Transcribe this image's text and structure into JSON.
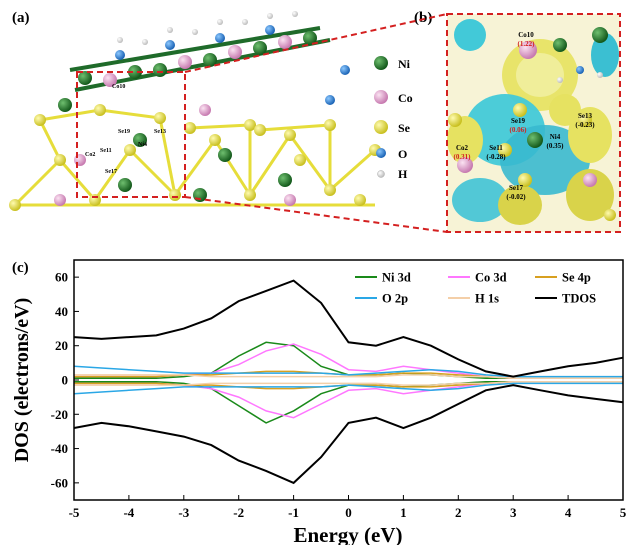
{
  "panels": {
    "a": "(a)",
    "b": "(b)",
    "c": "(c)"
  },
  "structure_legend": [
    {
      "label": "Ni",
      "color": "#1f6b2a"
    },
    {
      "label": "Co",
      "color": "#e3a6cc"
    },
    {
      "label": "Se",
      "color": "#e8e23a"
    },
    {
      "label": "O",
      "color": "#2b7fd1"
    },
    {
      "label": "H",
      "color": "#eeeeee"
    }
  ],
  "atom_labels_a": [
    "Co10",
    "Se19",
    "Se13",
    "Ni4",
    "Se11",
    "Co2",
    "Se17"
  ],
  "atom_labels_b": [
    {
      "name": "Co10",
      "charge": "(1.22)",
      "charge_color": "#d42020"
    },
    {
      "name": "Se19",
      "charge": "(0.06)",
      "charge_color": "#d42020"
    },
    {
      "name": "Se13",
      "charge": "(-0.23)",
      "charge_color": "#000000"
    },
    {
      "name": "Ni4",
      "charge": "(0.35)",
      "charge_color": "#000000"
    },
    {
      "name": "Co2",
      "charge": "(0.31)",
      "charge_color": "#d42020"
    },
    {
      "name": "Se11",
      "charge": "(-0.28)",
      "charge_color": "#000000"
    },
    {
      "name": "Se17",
      "charge": "(-0.02)",
      "charge_color": "#000000"
    }
  ],
  "chart_data": {
    "type": "line",
    "xlabel": "Energy (eV)",
    "ylabel": "DOS (electrons/eV)",
    "xlim": [
      -5,
      5
    ],
    "ylim": [
      -70,
      70
    ],
    "xticks": [
      -5,
      -4,
      -3,
      -2,
      -1,
      0,
      1,
      2,
      3,
      4,
      5
    ],
    "yticks": [
      60,
      40,
      20,
      0,
      -20,
      -40,
      -60
    ],
    "legend_position": "top-right",
    "x": [
      -5,
      -4.5,
      -4,
      -3.5,
      -3,
      -2.5,
      -2,
      -1.5,
      -1,
      -0.5,
      0,
      0.5,
      1,
      1.5,
      2,
      2.5,
      3,
      3.5,
      4,
      4.5,
      5
    ],
    "series": [
      {
        "name": "Ni 3d",
        "color": "#1a8a1a",
        "up": [
          1,
          1,
          1,
          1,
          2,
          4,
          14,
          22,
          20,
          8,
          3,
          3,
          4,
          3,
          2,
          1,
          1,
          1,
          1,
          1,
          1
        ],
        "down": [
          -1,
          -1,
          -1,
          -1,
          -2,
          -5,
          -15,
          -25,
          -18,
          -8,
          -3,
          -3,
          -4,
          -3,
          -2,
          -1,
          -1,
          -1,
          -1,
          -1,
          -1
        ]
      },
      {
        "name": "Co 3d",
        "color": "#ff77ff",
        "up": [
          2,
          2,
          2,
          2,
          3,
          4,
          9,
          17,
          21,
          15,
          6,
          5,
          8,
          6,
          4,
          2,
          1,
          1,
          1,
          1,
          1
        ],
        "down": [
          -2,
          -2,
          -2,
          -2,
          -3,
          -5,
          -10,
          -18,
          -22,
          -14,
          -6,
          -5,
          -8,
          -6,
          -4,
          -2,
          -1,
          -1,
          -1,
          -1,
          -1
        ]
      },
      {
        "name": "Se 4p",
        "color": "#d8a020",
        "up": [
          2,
          2,
          2,
          2,
          3,
          3,
          4,
          5,
          5,
          4,
          3,
          3,
          4,
          4,
          3,
          2,
          1,
          1,
          1,
          1,
          1
        ],
        "down": [
          -2,
          -2,
          -2,
          -2,
          -3,
          -3,
          -4,
          -5,
          -5,
          -4,
          -3,
          -3,
          -4,
          -4,
          -3,
          -2,
          -1,
          -1,
          -1,
          -1,
          -1
        ]
      },
      {
        "name": "O 2p",
        "color": "#2aa7e6",
        "up": [
          8,
          7,
          6,
          5,
          4,
          4,
          4,
          4,
          4,
          4,
          3,
          4,
          5,
          6,
          5,
          3,
          2,
          2,
          2,
          2,
          2
        ],
        "down": [
          -8,
          -7,
          -6,
          -5,
          -4,
          -4,
          -4,
          -4,
          -4,
          -4,
          -3,
          -4,
          -5,
          -6,
          -5,
          -3,
          -2,
          -2,
          -2,
          -2,
          -2
        ]
      },
      {
        "name": "H 1s",
        "color": "#f4cfa8",
        "up": [
          3,
          3,
          3,
          3,
          3,
          2,
          2,
          2,
          2,
          2,
          2,
          2,
          3,
          3,
          2,
          2,
          1,
          1,
          1,
          1,
          1
        ],
        "down": [
          -3,
          -3,
          -3,
          -3,
          -3,
          -2,
          -2,
          -2,
          -2,
          -2,
          -2,
          -2,
          -3,
          -3,
          -2,
          -2,
          -1,
          -1,
          -1,
          -1,
          -1
        ]
      },
      {
        "name": "TDOS",
        "color": "#000000",
        "up": [
          25,
          24,
          25,
          26,
          30,
          36,
          46,
          52,
          58,
          45,
          22,
          20,
          25,
          20,
          12,
          5,
          2,
          5,
          8,
          10,
          13
        ],
        "down": [
          -28,
          -25,
          -27,
          -30,
          -33,
          -38,
          -47,
          -53,
          -60,
          -45,
          -25,
          -22,
          -28,
          -22,
          -14,
          -6,
          -3,
          -6,
          -9,
          -11,
          -13
        ]
      }
    ]
  }
}
